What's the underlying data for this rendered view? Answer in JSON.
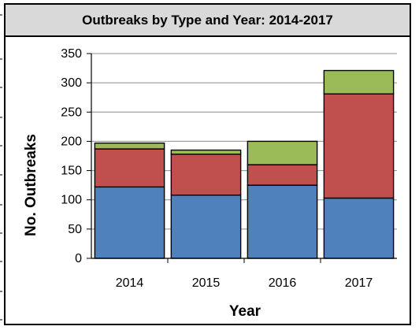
{
  "chart_data": {
    "type": "bar",
    "stacked": true,
    "title": "Outbreaks by Type and Year: 2014-2017",
    "xlabel": "Year",
    "ylabel": "No. Outbreaks",
    "categories": [
      "2014",
      "2015",
      "2016",
      "2017"
    ],
    "ylim": [
      0,
      350
    ],
    "yticks": [
      0,
      50,
      100,
      150,
      200,
      250,
      300,
      350
    ],
    "grid": true,
    "legend": "none",
    "series": [
      {
        "color": "#4f81bd",
        "values": [
          122,
          108,
          125,
          103
        ]
      },
      {
        "color": "#c0504d",
        "values": [
          65,
          70,
          35,
          178
        ]
      },
      {
        "color": "#9bbb59",
        "values": [
          10,
          7,
          40,
          40
        ]
      }
    ]
  }
}
